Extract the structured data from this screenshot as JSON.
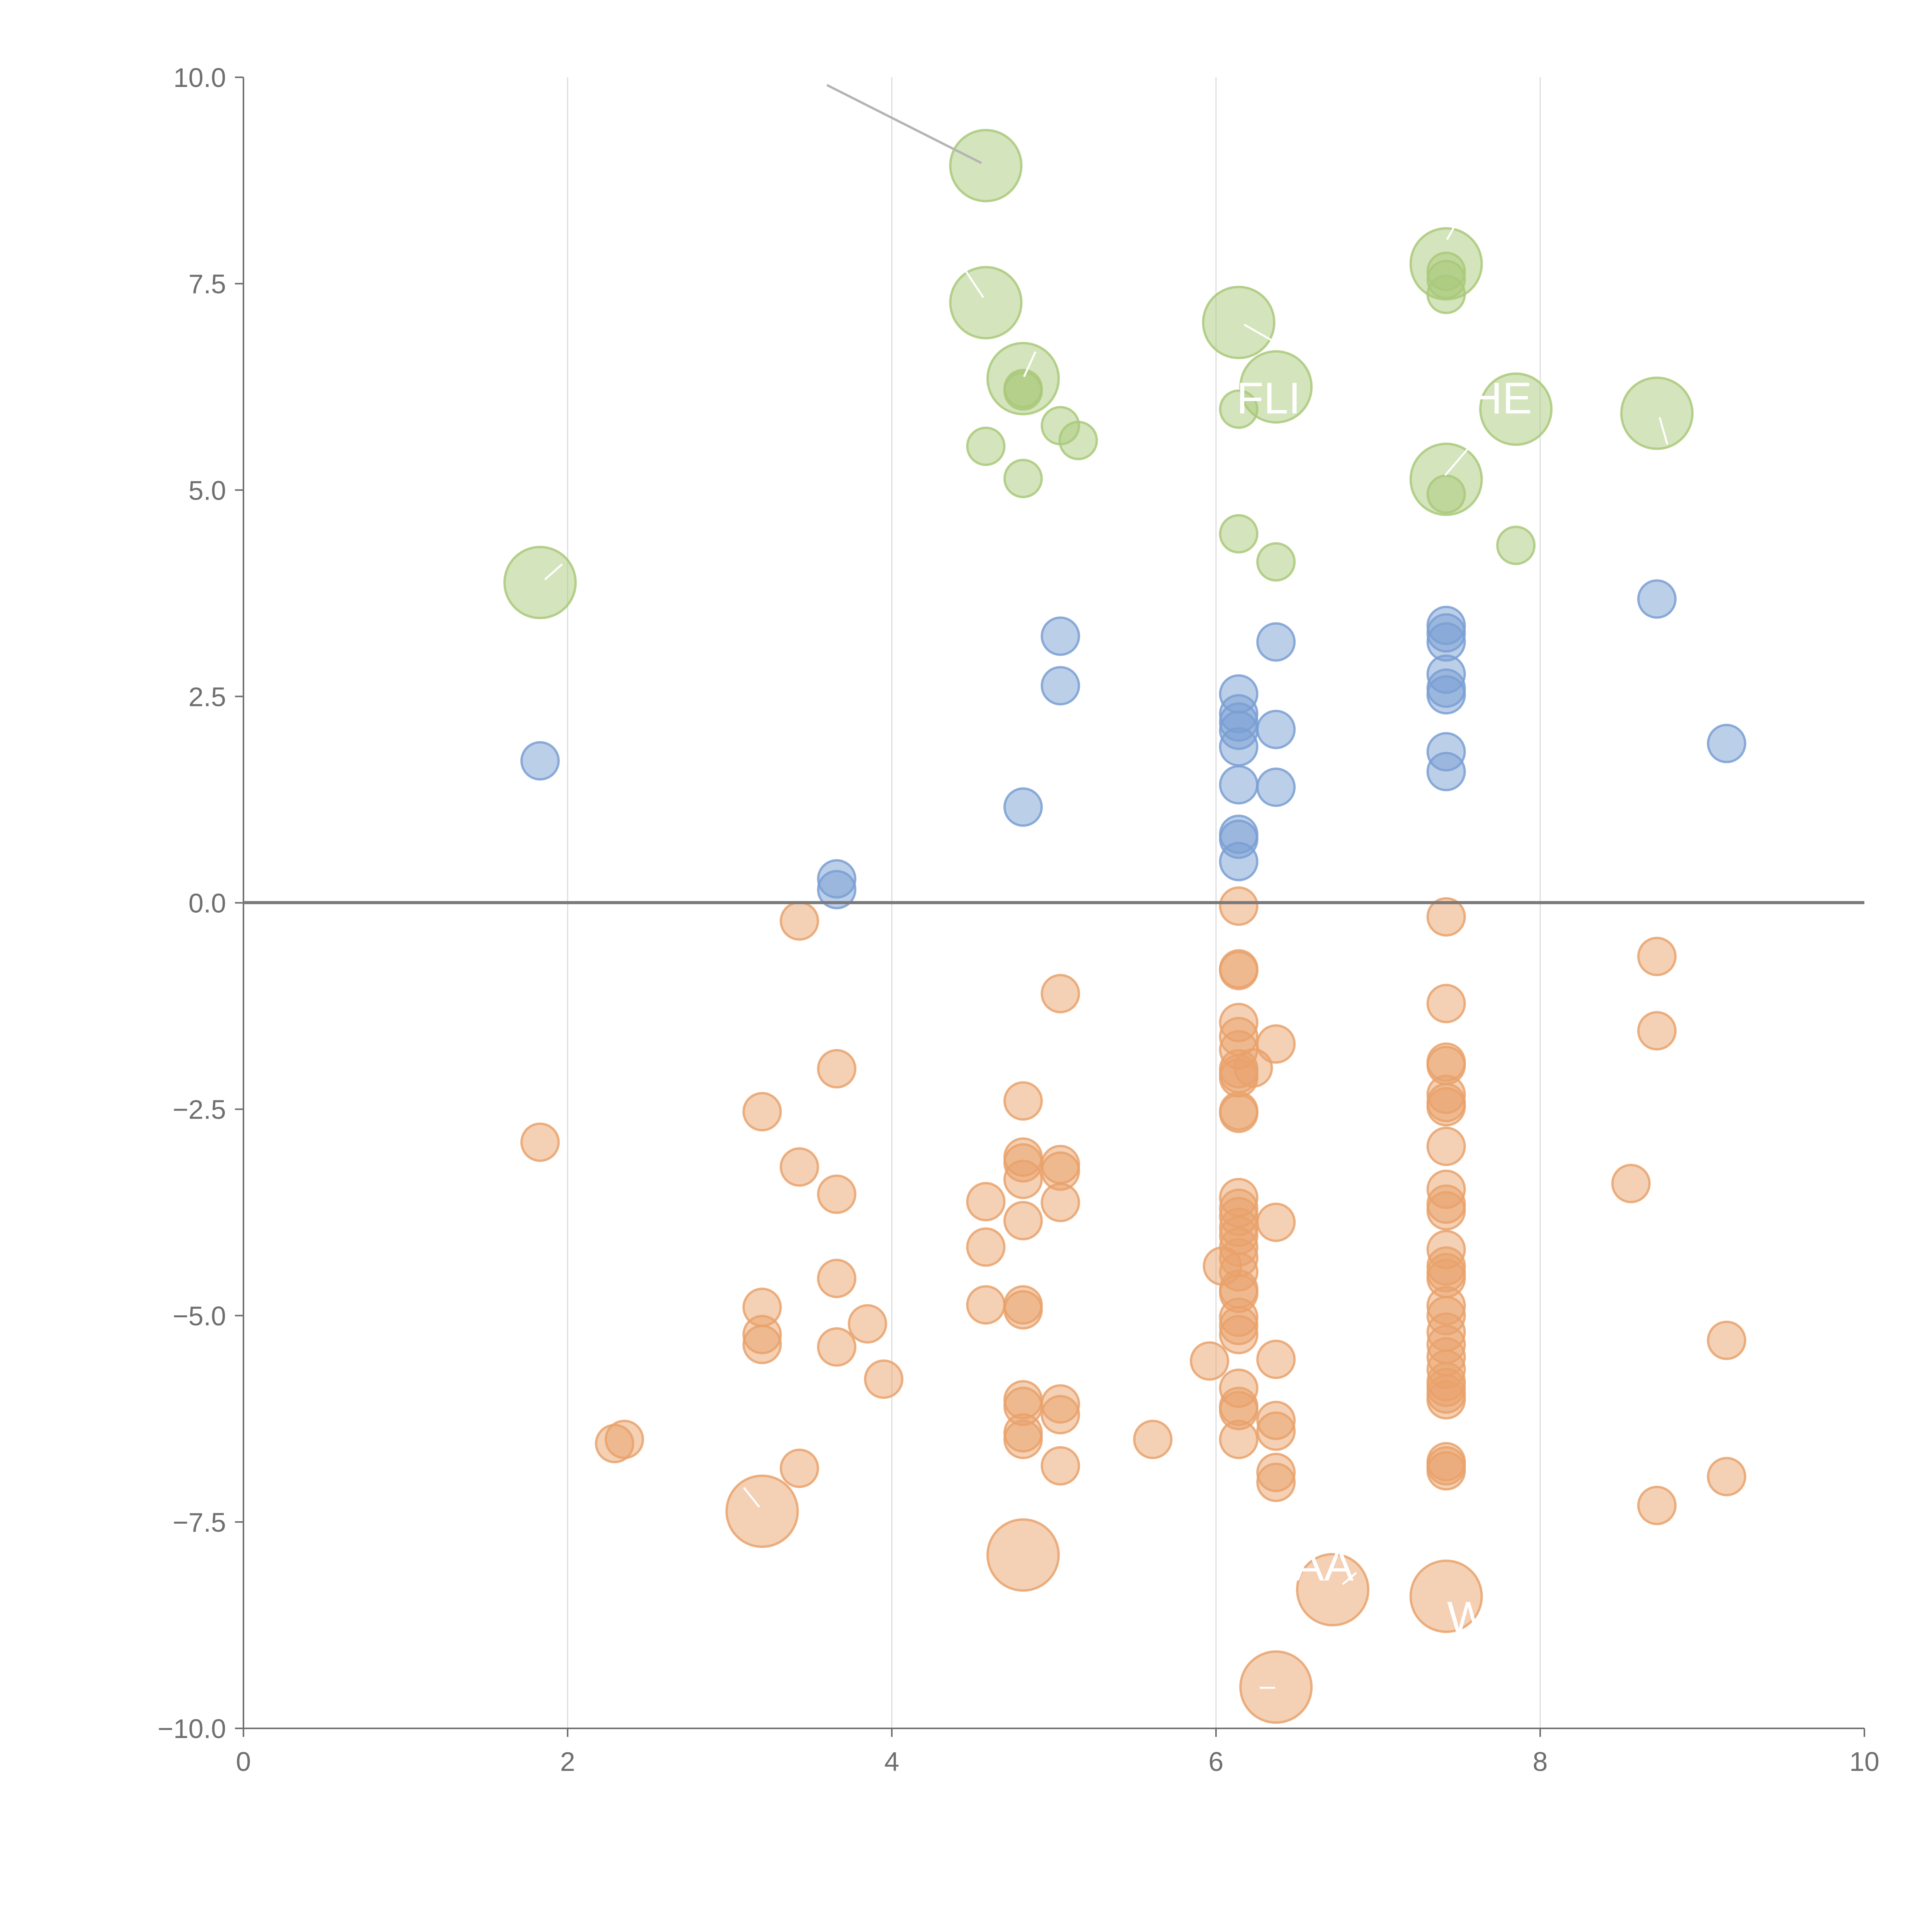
{
  "chart_data": {
    "type": "scatter",
    "title": "",
    "xlabel": "",
    "ylabel": "",
    "xlim": [
      0,
      10
    ],
    "ylim": [
      -10,
      10
    ],
    "xticks": [
      "0",
      "2",
      "4",
      "6",
      "8",
      "10"
    ],
    "yticks": [
      "10.0",
      "7.5",
      "5.0",
      "2.5",
      "0.0",
      "−2.5",
      "−5.0",
      "−7.5",
      "−10.0"
    ],
    "x_grid_values": [
      2,
      4,
      6,
      8
    ],
    "baseline_y": 0,
    "colors": {
      "green": "#a9c97a",
      "blue": "#7a9fd4",
      "orange": "#e9a26b",
      "axis": "#6f6f6f",
      "grid": "#dcdcdc",
      "baseline": "#7a7a7a",
      "leader": "#b4b4b4"
    },
    "series": [
      {
        "name": "green",
        "color": "#a9c97a",
        "points": [
          [
            4.58,
            8.93,
            2
          ],
          [
            4.58,
            7.27,
            2
          ],
          [
            4.81,
            6.35,
            2
          ],
          [
            4.81,
            6.23,
            1
          ],
          [
            4.81,
            6.2,
            1
          ],
          [
            5.04,
            5.78,
            1
          ],
          [
            5.15,
            5.6,
            1
          ],
          [
            4.58,
            5.53,
            1
          ],
          [
            4.81,
            5.14,
            1
          ],
          [
            6.14,
            7.03,
            2
          ],
          [
            6.37,
            6.25,
            2
          ],
          [
            6.14,
            5.98,
            1
          ],
          [
            6.14,
            4.47,
            1
          ],
          [
            6.37,
            4.13,
            1
          ],
          [
            7.42,
            7.74,
            2
          ],
          [
            7.42,
            7.65,
            1
          ],
          [
            7.42,
            7.55,
            1
          ],
          [
            7.42,
            7.37,
            1
          ],
          [
            7.42,
            5.13,
            2
          ],
          [
            7.42,
            4.95,
            1
          ],
          [
            7.85,
            5.98,
            2
          ],
          [
            7.85,
            4.33,
            1
          ],
          [
            8.72,
            5.93,
            2
          ],
          [
            1.83,
            3.88,
            2
          ]
        ]
      },
      {
        "name": "blue",
        "color": "#7a9fd4",
        "points": [
          [
            1.83,
            1.72,
            1
          ],
          [
            3.66,
            0.29,
            1
          ],
          [
            3.66,
            0.16,
            1
          ],
          [
            4.81,
            1.16,
            1
          ],
          [
            5.04,
            3.23,
            1
          ],
          [
            5.04,
            2.63,
            1
          ],
          [
            6.14,
            2.53,
            1
          ],
          [
            6.14,
            2.29,
            1
          ],
          [
            6.14,
            2.19,
            1
          ],
          [
            6.14,
            2.09,
            1
          ],
          [
            6.14,
            1.89,
            1
          ],
          [
            6.14,
            1.43,
            1
          ],
          [
            6.14,
            0.83,
            1
          ],
          [
            6.14,
            0.77,
            1
          ],
          [
            6.14,
            0.5,
            1
          ],
          [
            6.37,
            3.16,
            1
          ],
          [
            6.37,
            2.1,
            1
          ],
          [
            6.37,
            1.4,
            1
          ],
          [
            7.42,
            3.36,
            1
          ],
          [
            7.42,
            3.27,
            1
          ],
          [
            7.42,
            3.16,
            1
          ],
          [
            7.42,
            2.77,
            1
          ],
          [
            7.42,
            2.6,
            1
          ],
          [
            7.42,
            2.52,
            1
          ],
          [
            7.42,
            1.83,
            1
          ],
          [
            7.42,
            1.59,
            1
          ],
          [
            8.72,
            3.68,
            1
          ],
          [
            9.15,
            1.93,
            1
          ]
        ]
      },
      {
        "name": "orange",
        "color": "#e9a26b",
        "points": [
          [
            1.83,
            -2.9,
            1
          ],
          [
            2.29,
            -6.55,
            1
          ],
          [
            2.35,
            -6.5,
            1
          ],
          [
            3.2,
            -2.53,
            1
          ],
          [
            3.2,
            -4.9,
            1
          ],
          [
            3.2,
            -5.23,
            1
          ],
          [
            3.2,
            -5.35,
            1
          ],
          [
            3.43,
            -0.22,
            1
          ],
          [
            3.43,
            -3.2,
            1
          ],
          [
            3.43,
            -6.85,
            1
          ],
          [
            3.66,
            -2.01,
            1
          ],
          [
            3.66,
            -3.53,
            1
          ],
          [
            3.66,
            -4.55,
            1
          ],
          [
            3.66,
            -5.38,
            1
          ],
          [
            3.85,
            -5.1,
            1
          ],
          [
            3.95,
            -5.77,
            1
          ],
          [
            3.2,
            -7.37,
            2
          ],
          [
            4.58,
            -3.62,
            1
          ],
          [
            4.58,
            -4.17,
            1
          ],
          [
            4.58,
            -4.87,
            1
          ],
          [
            4.81,
            -2.4,
            1
          ],
          [
            4.81,
            -3.08,
            1
          ],
          [
            4.81,
            -3.15,
            1
          ],
          [
            4.81,
            -3.35,
            1
          ],
          [
            4.81,
            -3.85,
            1
          ],
          [
            4.81,
            -4.87,
            1
          ],
          [
            4.81,
            -4.93,
            1
          ],
          [
            4.81,
            -6.02,
            1
          ],
          [
            4.81,
            -6.1,
            1
          ],
          [
            4.81,
            -6.42,
            1
          ],
          [
            4.81,
            -6.5,
            1
          ],
          [
            4.81,
            -7.9,
            2
          ],
          [
            5.04,
            -1.1,
            1
          ],
          [
            5.04,
            -3.17,
            1
          ],
          [
            5.04,
            -3.25,
            1
          ],
          [
            5.04,
            -3.63,
            1
          ],
          [
            5.04,
            -6.07,
            1
          ],
          [
            5.04,
            -6.2,
            1
          ],
          [
            5.04,
            -6.82,
            1
          ],
          [
            5.61,
            -6.5,
            1
          ],
          [
            5.96,
            -5.55,
            1
          ],
          [
            6.04,
            -4.4,
            1
          ],
          [
            6.14,
            -0.04,
            1
          ],
          [
            6.14,
            -0.8,
            1
          ],
          [
            6.14,
            -0.82,
            1
          ],
          [
            6.14,
            -1.45,
            1
          ],
          [
            6.14,
            -1.62,
            1
          ],
          [
            6.14,
            -1.78,
            1
          ],
          [
            6.14,
            -2.01,
            1
          ],
          [
            6.14,
            -2.07,
            1
          ],
          [
            6.14,
            -2.12,
            1
          ],
          [
            6.14,
            -2.52,
            1
          ],
          [
            6.14,
            -2.55,
            1
          ],
          [
            6.14,
            -3.57,
            1
          ],
          [
            6.14,
            -3.7,
            1
          ],
          [
            6.14,
            -3.8,
            1
          ],
          [
            6.14,
            -3.93,
            1
          ],
          [
            6.14,
            -4.03,
            1
          ],
          [
            6.14,
            -4.17,
            1
          ],
          [
            6.14,
            -4.3,
            1
          ],
          [
            6.14,
            -4.47,
            1
          ],
          [
            6.14,
            -4.68,
            1
          ],
          [
            6.14,
            -4.73,
            1
          ],
          [
            6.14,
            -5.02,
            1
          ],
          [
            6.14,
            -5.12,
            1
          ],
          [
            6.14,
            -5.23,
            1
          ],
          [
            6.14,
            -5.88,
            1
          ],
          [
            6.14,
            -6.1,
            1
          ],
          [
            6.14,
            -6.15,
            1
          ],
          [
            6.14,
            -6.5,
            1
          ],
          [
            6.23,
            -2.0,
            1
          ],
          [
            6.37,
            -1.71,
            1
          ],
          [
            6.37,
            -3.87,
            1
          ],
          [
            6.37,
            -5.53,
            1
          ],
          [
            6.37,
            -6.27,
            1
          ],
          [
            6.37,
            -6.4,
            1
          ],
          [
            6.37,
            -6.9,
            1
          ],
          [
            6.37,
            -7.02,
            1
          ],
          [
            6.37,
            -9.5,
            2
          ],
          [
            6.72,
            -8.32,
            2
          ],
          [
            7.42,
            -0.17,
            1
          ],
          [
            7.42,
            -1.22,
            1
          ],
          [
            7.42,
            -1.93,
            1
          ],
          [
            7.42,
            -1.97,
            1
          ],
          [
            7.42,
            -2.32,
            1
          ],
          [
            7.42,
            -2.42,
            1
          ],
          [
            7.42,
            -2.47,
            1
          ],
          [
            7.42,
            -2.95,
            1
          ],
          [
            7.42,
            -3.47,
            1
          ],
          [
            7.42,
            -3.65,
            1
          ],
          [
            7.42,
            -3.73,
            1
          ],
          [
            7.42,
            -4.2,
            1
          ],
          [
            7.42,
            -4.4,
            1
          ],
          [
            7.42,
            -4.48,
            1
          ],
          [
            7.42,
            -4.55,
            1
          ],
          [
            7.42,
            -4.88,
            1
          ],
          [
            7.42,
            -5.0,
            1
          ],
          [
            7.42,
            -5.2,
            1
          ],
          [
            7.42,
            -5.35,
            1
          ],
          [
            7.42,
            -5.5,
            1
          ],
          [
            7.42,
            -5.65,
            1
          ],
          [
            7.42,
            -5.8,
            1
          ],
          [
            7.42,
            -5.87,
            1
          ],
          [
            7.42,
            -5.95,
            1
          ],
          [
            7.42,
            -6.02,
            1
          ],
          [
            7.42,
            -6.77,
            1
          ],
          [
            7.42,
            -6.82,
            1
          ],
          [
            7.42,
            -6.88,
            1
          ],
          [
            7.42,
            -8.4,
            2
          ],
          [
            8.56,
            -3.4,
            1
          ],
          [
            8.72,
            -0.65,
            1
          ],
          [
            8.72,
            -1.55,
            1
          ],
          [
            8.72,
            -7.3,
            1
          ],
          [
            9.15,
            -5.3,
            1
          ],
          [
            9.15,
            -6.95,
            1
          ]
        ]
      }
    ],
    "point_labels": [
      "FLI",
      "HE",
      "AA",
      "W"
    ]
  }
}
